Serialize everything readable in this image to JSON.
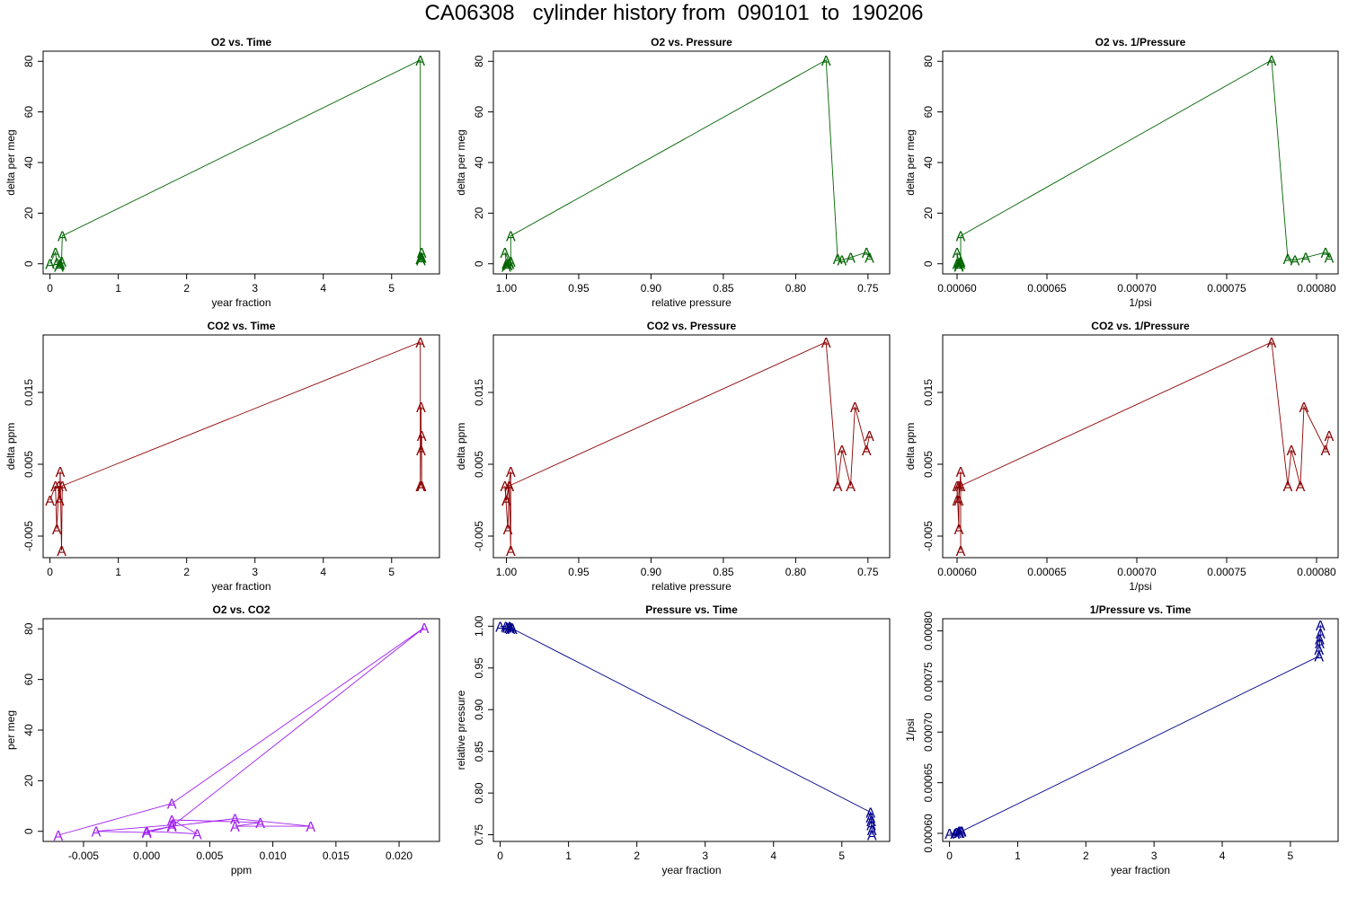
{
  "title": "CA06308   cylinder history from  090101  to  190206",
  "chart_data": [
    {
      "type": "line",
      "title": "O2 vs. Time",
      "xlabel": "year fraction",
      "ylabel": "delta per meg",
      "xlim": [
        -0.1,
        5.7
      ],
      "ylim": [
        -4,
        84
      ],
      "xticks": [
        0,
        1,
        2,
        3,
        4,
        5
      ],
      "xtick_labels": [
        "0",
        "1",
        "2",
        "3",
        "4",
        "5"
      ],
      "yticks": [
        0,
        20,
        40,
        60,
        80
      ],
      "ytick_labels": [
        "0",
        "20",
        "40",
        "60",
        "80"
      ],
      "color": "#006400",
      "marker": "A",
      "series": [
        {
          "x": [
            0,
            0.08,
            0.1,
            0.13,
            0.14,
            0.15,
            0.17,
            0.18,
            5.42,
            5.42,
            5.43,
            5.43,
            5.44,
            5.44
          ],
          "y": [
            0,
            4.5,
            0.5,
            -1,
            -0.5,
            0,
            1,
            11,
            80.5,
            2,
            1.5,
            2.5,
            4.5,
            2.5
          ]
        }
      ]
    },
    {
      "type": "line",
      "title": "O2 vs. Pressure",
      "xlabel": "relative pressure",
      "ylabel": "delta per meg",
      "xlim": [
        1.009,
        0.735
      ],
      "ylim": [
        -4,
        84
      ],
      "xticks": [
        1.0,
        0.95,
        0.9,
        0.85,
        0.8,
        0.75
      ],
      "xtick_labels": [
        "1.00",
        "0.95",
        "0.90",
        "0.85",
        "0.80",
        "0.75"
      ],
      "yticks": [
        0,
        20,
        40,
        60,
        80
      ],
      "ytick_labels": [
        "0",
        "20",
        "40",
        "60",
        "80"
      ],
      "color": "#006400",
      "marker": "A",
      "series": [
        {
          "x": [
            1.0,
            1.001,
            0.998,
            1.0,
            0.999,
            0.998,
            0.997,
            0.997,
            0.779,
            0.771,
            0.768,
            0.762,
            0.751,
            0.749
          ],
          "y": [
            0,
            4.5,
            0.5,
            -1,
            -0.5,
            0,
            1,
            11,
            80.5,
            2,
            1.5,
            2.5,
            4.5,
            2.5
          ]
        }
      ]
    },
    {
      "type": "line",
      "title": "O2 vs. 1/Pressure",
      "xlabel": "1/psi",
      "ylabel": "delta per meg",
      "xlim": [
        0.000592,
        0.000812
      ],
      "ylim": [
        -4,
        84
      ],
      "xticks": [
        0.0006,
        0.00065,
        0.0007,
        0.00075,
        0.0008
      ],
      "xtick_labels": [
        "0.00060",
        "0.00065",
        "0.00070",
        "0.00075",
        "0.00080"
      ],
      "yticks": [
        0,
        20,
        40,
        60,
        80
      ],
      "ytick_labels": [
        "0",
        "20",
        "40",
        "60",
        "80"
      ],
      "color": "#006400",
      "marker": "A",
      "series": [
        {
          "x": [
            0.0006,
            0.0006,
            0.000601,
            0.000601,
            0.000601,
            0.000602,
            0.000602,
            0.000602,
            0.000775,
            0.000784,
            0.000788,
            0.000794,
            0.000805,
            0.000807
          ],
          "y": [
            0,
            4.5,
            0.5,
            -1,
            -0.5,
            0,
            1,
            11,
            80.5,
            2,
            1.5,
            2.5,
            4.5,
            2.5
          ]
        }
      ]
    },
    {
      "type": "line",
      "title": "CO2 vs. Time",
      "xlabel": "year fraction",
      "ylabel": "delta ppm",
      "xlim": [
        -0.1,
        5.7
      ],
      "ylim": [
        -0.008,
        0.023
      ],
      "xticks": [
        0,
        1,
        2,
        3,
        4,
        5
      ],
      "xtick_labels": [
        "0",
        "1",
        "2",
        "3",
        "4",
        "5"
      ],
      "yticks": [
        -0.005,
        0.005,
        0.015
      ],
      "ytick_labels": [
        "-0.005",
        "0.005",
        "0.015"
      ],
      "color": "#8b0000",
      "marker": "A",
      "series": [
        {
          "x": [
            0,
            0.08,
            0.1,
            0.13,
            0.14,
            0.15,
            0.17,
            0.18,
            5.42,
            5.42,
            5.43,
            5.43,
            5.44,
            5.44
          ],
          "y": [
            0,
            0.002,
            -0.004,
            0.002,
            0,
            0.004,
            -0.007,
            0.002,
            0.022,
            0.002,
            0.013,
            0.007,
            0.009,
            0.002
          ]
        }
      ]
    },
    {
      "type": "line",
      "title": "CO2 vs. Pressure",
      "xlabel": "relative pressure",
      "ylabel": "delta ppm",
      "xlim": [
        1.009,
        0.735
      ],
      "ylim": [
        -0.008,
        0.023
      ],
      "xticks": [
        1.0,
        0.95,
        0.9,
        0.85,
        0.8,
        0.75
      ],
      "xtick_labels": [
        "1.00",
        "0.95",
        "0.90",
        "0.85",
        "0.80",
        "0.75"
      ],
      "yticks": [
        -0.005,
        0.005,
        0.015
      ],
      "ytick_labels": [
        "-0.005",
        "0.005",
        "0.015"
      ],
      "color": "#8b0000",
      "marker": "A",
      "series": [
        {
          "x": [
            1.0,
            1.001,
            0.999,
            0.998,
            1.0,
            0.997,
            0.997,
            0.998,
            0.779,
            0.771,
            0.768,
            0.762,
            0.759,
            0.751,
            0.749
          ],
          "y": [
            0,
            0.002,
            -0.004,
            0.002,
            0,
            0.004,
            -0.007,
            0.002,
            0.022,
            0.002,
            0.007,
            0.002,
            0.013,
            0.007,
            0.009
          ]
        }
      ]
    },
    {
      "type": "line",
      "title": "CO2 vs. 1/Pressure",
      "xlabel": "1/psi",
      "ylabel": "delta ppm",
      "xlim": [
        0.000592,
        0.000812
      ],
      "ylim": [
        -0.008,
        0.023
      ],
      "xticks": [
        0.0006,
        0.00065,
        0.0007,
        0.00075,
        0.0008
      ],
      "xtick_labels": [
        "0.00060",
        "0.00065",
        "0.00070",
        "0.00075",
        "0.00080"
      ],
      "yticks": [
        -0.005,
        0.005,
        0.015
      ],
      "ytick_labels": [
        "-0.005",
        "0.005",
        "0.015"
      ],
      "color": "#8b0000",
      "marker": "A",
      "series": [
        {
          "x": [
            0.0006,
            0.0006,
            0.000601,
            0.000601,
            0.000601,
            0.000602,
            0.000602,
            0.000602,
            0.000775,
            0.000784,
            0.000786,
            0.000791,
            0.000793,
            0.000805,
            0.000807
          ],
          "y": [
            0,
            0.002,
            -0.004,
            0.002,
            0,
            0.004,
            -0.007,
            0.002,
            0.022,
            0.002,
            0.007,
            0.002,
            0.013,
            0.007,
            0.009
          ]
        }
      ]
    },
    {
      "type": "line",
      "title": "O2 vs. CO2",
      "xlabel": "ppm",
      "ylabel": "per meg",
      "xlim": [
        -0.0082,
        0.0232
      ],
      "ylim": [
        -4,
        84
      ],
      "xticks": [
        -0.005,
        0,
        0.005,
        0.01,
        0.015,
        0.02
      ],
      "xtick_labels": [
        "-0.005",
        "0.000",
        "0.005",
        "0.010",
        "0.015",
        "0.020"
      ],
      "yticks": [
        0,
        20,
        40,
        60,
        80
      ],
      "ytick_labels": [
        "0",
        "20",
        "40",
        "60",
        "80"
      ],
      "color": "#a020f0",
      "marker": "A",
      "series": [
        {
          "x": [
            -0.007,
            0.002,
            0.022,
            0.002,
            0.007,
            0.013,
            0.007,
            0.009,
            0.002,
            0.004,
            0,
            0.002,
            0,
            -0.004,
            0.002
          ],
          "y": [
            -1.5,
            11,
            80.5,
            2,
            5,
            2,
            2,
            3.5,
            4.5,
            -1,
            0,
            2,
            -0.5,
            0,
            2.5
          ]
        }
      ]
    },
    {
      "type": "line",
      "title": "Pressure vs. Time",
      "xlabel": "year fraction",
      "ylabel": "relative pressure",
      "xlim": [
        -0.1,
        5.7
      ],
      "ylim": [
        0.742,
        1.009
      ],
      "xticks": [
        0,
        1,
        2,
        3,
        4,
        5
      ],
      "xtick_labels": [
        "0",
        "1",
        "2",
        "3",
        "4",
        "5"
      ],
      "yticks": [
        0.75,
        0.8,
        0.85,
        0.9,
        0.95,
        1.0
      ],
      "ytick_labels": [
        "0.75",
        "0.80",
        "0.85",
        "0.90",
        "0.95",
        "1.00"
      ],
      "color": "#00008b",
      "marker": "A",
      "series": [
        {
          "x": [
            0,
            0.08,
            0.1,
            0.13,
            0.14,
            0.15,
            0.17,
            0.18,
            5.42,
            5.42,
            5.43,
            5.43,
            5.44,
            5.44
          ],
          "y": [
            1.0,
            1.0,
            0.999,
            0.998,
            1.0,
            0.997,
            0.998,
            0.997,
            0.777,
            0.771,
            0.767,
            0.762,
            0.756,
            0.75
          ]
        }
      ]
    },
    {
      "type": "line",
      "title": "1/Pressure vs. Time",
      "xlabel": "year fraction",
      "ylabel": "1/psi",
      "xlim": [
        -0.1,
        5.7
      ],
      "ylim": [
        0.000592,
        0.000812
      ],
      "xticks": [
        0,
        1,
        2,
        3,
        4,
        5
      ],
      "xtick_labels": [
        "0",
        "1",
        "2",
        "3",
        "4",
        "5"
      ],
      "yticks": [
        0.0006,
        0.00065,
        0.0007,
        0.00075,
        0.0008
      ],
      "ytick_labels": [
        "0.00060",
        "0.00065",
        "0.00070",
        "0.00075",
        "0.00080"
      ],
      "color": "#00008b",
      "marker": "A",
      "series": [
        {
          "x": [
            0,
            0.08,
            0.1,
            0.13,
            0.14,
            0.15,
            0.17,
            0.18,
            5.42,
            5.42,
            5.43,
            5.43,
            5.44,
            5.44
          ],
          "y": [
            0.0006,
            0.0006,
            0.000601,
            0.000601,
            0.000602,
            0.000601,
            0.000602,
            0.000602,
            0.000775,
            0.000782,
            0.000788,
            0.000792,
            0.000798,
            0.000806
          ]
        }
      ]
    }
  ]
}
